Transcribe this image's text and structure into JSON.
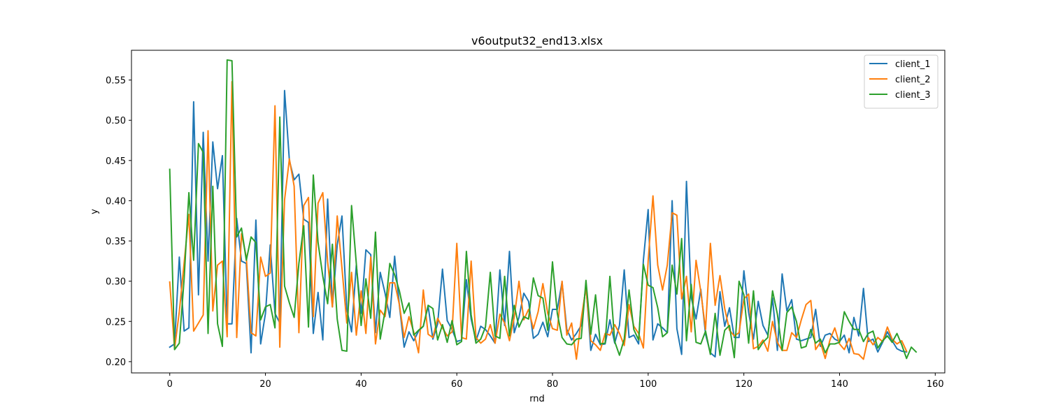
{
  "chart_data": {
    "type": "line",
    "title": "v6output32_end13.xlsx",
    "xlabel": "rnd",
    "ylabel": "y",
    "xlim": [
      -8,
      162
    ],
    "ylim": [
      0.186,
      0.587
    ],
    "xticks": [
      0,
      20,
      40,
      60,
      80,
      100,
      120,
      140,
      160
    ],
    "yticks": [
      0.2,
      0.25,
      0.3,
      0.35,
      0.4,
      0.45,
      0.5,
      0.55
    ],
    "xtick_labels": [
      "0",
      "20",
      "40",
      "60",
      "80",
      "100",
      "120",
      "140",
      "160"
    ],
    "ytick_labels": [
      "0.20",
      "0.25",
      "0.30",
      "0.35",
      "0.40",
      "0.45",
      "0.50",
      "0.55"
    ],
    "grid": false,
    "legend_position": "upper right",
    "series": [
      {
        "name": "client_1",
        "color": "#1f77b4",
        "values": [
          0.218,
          0.222,
          0.33,
          0.238,
          0.242,
          0.523,
          0.283,
          0.485,
          0.325,
          0.473,
          0.415,
          0.456,
          0.247,
          0.247,
          0.378,
          0.325,
          0.322,
          0.211,
          0.376,
          0.222,
          0.26,
          0.345,
          0.26,
          0.248,
          0.537,
          0.45,
          0.426,
          0.433,
          0.377,
          0.373,
          0.235,
          0.286,
          0.227,
          0.402,
          0.268,
          0.345,
          0.381,
          0.265,
          0.237,
          0.32,
          0.26,
          0.339,
          0.333,
          0.236,
          0.311,
          0.285,
          0.255,
          0.331,
          0.27,
          0.218,
          0.237,
          0.226,
          0.238,
          0.244,
          0.269,
          0.228,
          0.247,
          0.315,
          0.251,
          0.24,
          0.225,
          0.227,
          0.302,
          0.253,
          0.226,
          0.244,
          0.24,
          0.232,
          0.223,
          0.314,
          0.245,
          0.337,
          0.236,
          0.255,
          0.285,
          0.275,
          0.229,
          0.234,
          0.249,
          0.231,
          0.265,
          0.265,
          0.299,
          0.24,
          0.227,
          0.235,
          0.245,
          0.295,
          0.214,
          0.234,
          0.221,
          0.222,
          0.252,
          0.223,
          0.245,
          0.314,
          0.23,
          0.233,
          0.222,
          0.326,
          0.389,
          0.227,
          0.247,
          0.242,
          0.236,
          0.4,
          0.241,
          0.209,
          0.424,
          0.28,
          0.253,
          0.29,
          0.234,
          0.211,
          0.206,
          0.287,
          0.244,
          0.267,
          0.23,
          0.23,
          0.313,
          0.261,
          0.228,
          0.275,
          0.245,
          0.233,
          0.279,
          0.214,
          0.309,
          0.263,
          0.277,
          0.228,
          0.226,
          0.228,
          0.23,
          0.265,
          0.219,
          0.233,
          0.235,
          0.228,
          0.225,
          0.233,
          0.211,
          0.255,
          0.232,
          0.291,
          0.225,
          0.228,
          0.212,
          0.224,
          0.237,
          0.226,
          0.216,
          0.213,
          0.212
        ]
      },
      {
        "name": "client_2",
        "color": "#ff7f0e",
        "values": [
          0.299,
          0.216,
          0.262,
          0.323,
          0.383,
          0.238,
          0.248,
          0.258,
          0.487,
          0.263,
          0.32,
          0.325,
          0.231,
          0.548,
          0.23,
          0.359,
          0.33,
          0.236,
          0.232,
          0.33,
          0.306,
          0.31,
          0.518,
          0.218,
          0.401,
          0.452,
          0.418,
          0.236,
          0.394,
          0.404,
          0.256,
          0.397,
          0.41,
          0.324,
          0.268,
          0.381,
          0.316,
          0.248,
          0.311,
          0.233,
          0.288,
          0.235,
          0.33,
          0.222,
          0.264,
          0.256,
          0.298,
          0.298,
          0.271,
          0.23,
          0.256,
          0.237,
          0.211,
          0.289,
          0.234,
          0.23,
          0.254,
          0.242,
          0.232,
          0.237,
          0.347,
          0.23,
          0.228,
          0.325,
          0.23,
          0.223,
          0.228,
          0.246,
          0.223,
          0.259,
          0.248,
          0.226,
          0.255,
          0.3,
          0.252,
          0.265,
          0.241,
          0.262,
          0.297,
          0.26,
          0.241,
          0.239,
          0.3,
          0.233,
          0.248,
          0.203,
          0.253,
          0.292,
          0.226,
          0.221,
          0.214,
          0.235,
          0.233,
          0.246,
          0.235,
          0.22,
          0.271,
          0.244,
          0.235,
          0.217,
          0.325,
          0.406,
          0.32,
          0.289,
          0.32,
          0.385,
          0.382,
          0.278,
          0.306,
          0.237,
          0.326,
          0.287,
          0.24,
          0.347,
          0.27,
          0.307,
          0.266,
          0.239,
          0.232,
          0.236,
          0.278,
          0.284,
          0.216,
          0.219,
          0.227,
          0.213,
          0.25,
          0.224,
          0.214,
          0.214,
          0.236,
          0.23,
          0.252,
          0.271,
          0.276,
          0.215,
          0.224,
          0.204,
          0.227,
          0.242,
          0.222,
          0.215,
          0.229,
          0.21,
          0.209,
          0.203,
          0.23,
          0.221,
          0.23,
          0.225,
          0.243,
          0.228,
          0.222,
          0.226,
          0.213
        ]
      },
      {
        "name": "client_3",
        "color": "#2ca02c",
        "values": [
          0.439,
          0.215,
          0.223,
          0.303,
          0.41,
          0.326,
          0.471,
          0.46,
          0.235,
          0.418,
          0.247,
          0.219,
          0.575,
          0.574,
          0.355,
          0.366,
          0.326,
          0.355,
          0.348,
          0.252,
          0.268,
          0.271,
          0.242,
          0.504,
          0.294,
          0.273,
          0.255,
          0.322,
          0.369,
          0.243,
          0.432,
          0.348,
          0.306,
          0.272,
          0.346,
          0.253,
          0.214,
          0.213,
          0.394,
          0.322,
          0.245,
          0.303,
          0.254,
          0.361,
          0.228,
          0.263,
          0.322,
          0.308,
          0.288,
          0.26,
          0.273,
          0.233,
          0.239,
          0.244,
          0.27,
          0.266,
          0.227,
          0.246,
          0.224,
          0.251,
          0.221,
          0.225,
          0.337,
          0.258,
          0.223,
          0.228,
          0.243,
          0.311,
          0.232,
          0.229,
          0.306,
          0.232,
          0.27,
          0.243,
          0.256,
          0.253,
          0.304,
          0.282,
          0.279,
          0.239,
          0.324,
          0.26,
          0.23,
          0.222,
          0.221,
          0.228,
          0.229,
          0.301,
          0.234,
          0.283,
          0.222,
          0.223,
          0.306,
          0.225,
          0.208,
          0.228,
          0.289,
          0.24,
          0.227,
          0.321,
          0.295,
          0.292,
          0.267,
          0.231,
          0.236,
          0.32,
          0.284,
          0.353,
          0.226,
          0.296,
          0.224,
          0.222,
          0.238,
          0.209,
          0.26,
          0.208,
          0.239,
          0.245,
          0.205,
          0.3,
          0.283,
          0.223,
          0.288,
          0.215,
          0.224,
          0.23,
          0.288,
          0.259,
          0.214,
          0.261,
          0.268,
          0.25,
          0.217,
          0.219,
          0.24,
          0.223,
          0.228,
          0.211,
          0.222,
          0.222,
          0.224,
          0.262,
          0.25,
          0.24,
          0.24,
          0.225,
          0.235,
          0.238,
          0.217,
          0.226,
          0.232,
          0.224,
          0.235,
          0.221,
          0.204,
          0.218,
          0.212
        ]
      }
    ]
  }
}
